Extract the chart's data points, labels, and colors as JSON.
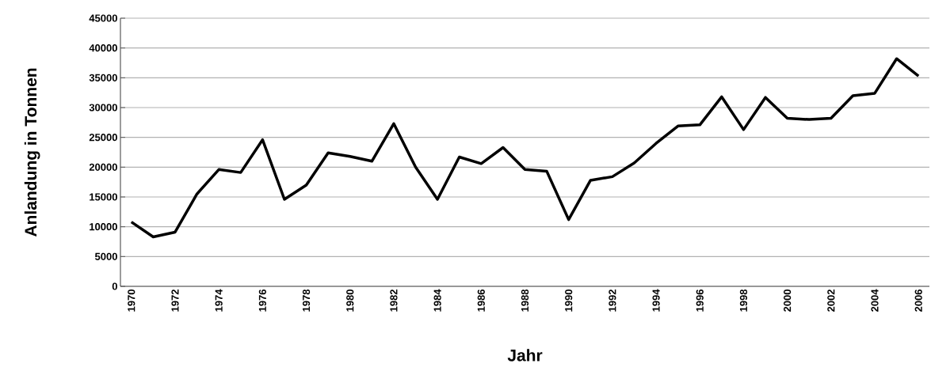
{
  "chart_data": {
    "type": "line",
    "xlabel": "Jahr",
    "ylabel": "Anlandung in Tonnen",
    "categories": [
      "1970",
      null,
      "1972",
      null,
      "1974",
      null,
      "1976",
      null,
      "1978",
      null,
      "1980",
      null,
      "1982",
      null,
      "1984",
      null,
      "1986",
      null,
      "1988",
      null,
      "1990",
      null,
      "1992",
      null,
      "1994",
      null,
      "1996",
      null,
      "1998",
      null,
      "2000",
      null,
      "2002",
      null,
      "2004",
      null,
      "2006"
    ],
    "values": [
      10800,
      8300,
      9100,
      15500,
      19600,
      19100,
      24600,
      14600,
      17000,
      22400,
      21800,
      21000,
      27300,
      20000,
      14600,
      21700,
      20600,
      23300,
      19600,
      19300,
      11200,
      17800,
      18400,
      20700,
      24000,
      26900,
      27100,
      31800,
      26300,
      31700,
      28200,
      28000,
      28200,
      32000,
      32400,
      38200,
      35300
    ],
    "color": "#000000",
    "ylim": [
      0,
      45000
    ],
    "yticks": [
      0,
      5000,
      10000,
      15000,
      20000,
      25000,
      30000,
      35000,
      40000,
      45000
    ],
    "grid": "y",
    "marker": "none",
    "line_style": "solid"
  }
}
